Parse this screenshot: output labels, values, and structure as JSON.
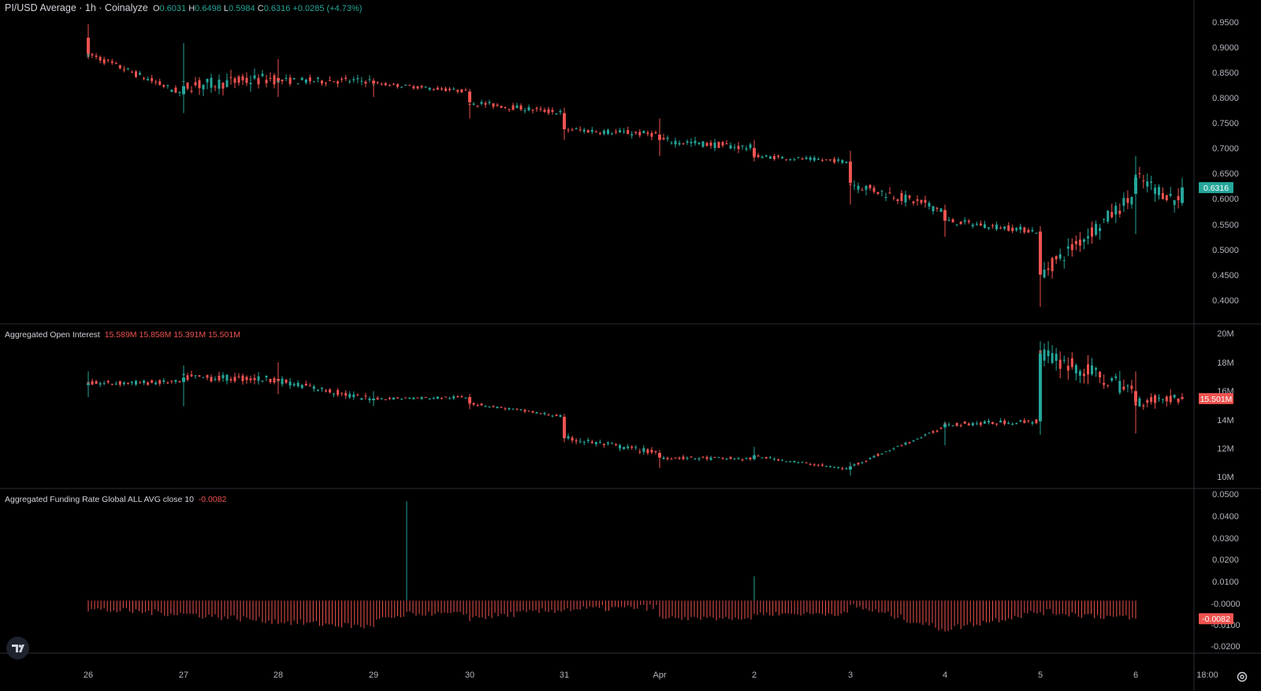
{
  "legend": {
    "main": {
      "title": "PI/USD Average · 1h · Coinalyze",
      "o_label": "O",
      "o": "0.6031",
      "h_label": "H",
      "h": "0.6498",
      "l_label": "L",
      "l": "0.5984",
      "c_label": "C",
      "c": "0.6316",
      "change": "+0.0285 (+4.73%)"
    },
    "oi": {
      "title": "Aggregated Open Interest",
      "o": "15.589M",
      "h": "15.858M",
      "l": "15.391M",
      "c": "15.501M"
    },
    "funding": {
      "title": "Aggregated Funding Rate Global ALL AVG close 10",
      "value": "-0.0082"
    }
  },
  "colors": {
    "up": "#26a69a",
    "down": "#ef5350",
    "background": "#000000",
    "text": "#d1d4dc",
    "grid": "#2a2e39"
  },
  "icons": {
    "logo": "tradingview-logo-icon",
    "settings": "gear-icon"
  },
  "chart_data": [
    {
      "type": "candlestick",
      "name": "PI/USD Average",
      "interval": "1h",
      "y_ticks": [
        "0.9500",
        "0.9000",
        "0.8500",
        "0.8000",
        "0.7500",
        "0.7000",
        "0.6500",
        "0.6000",
        "0.5500",
        "0.5000",
        "0.4500",
        "0.4000"
      ],
      "ylim": [
        0.38,
        0.98
      ],
      "last_value": "0.6316",
      "last_value_color": "#26a69a",
      "x": [
        "Mar 26",
        "Mar 27",
        "Mar 28",
        "Mar 29",
        "Mar 30",
        "Mar 31",
        "Apr 1",
        "Apr 2",
        "Apr 3",
        "Apr 4",
        "Apr 5",
        "Apr 6",
        "Apr 6 12:00"
      ],
      "open": [
        0.91,
        0.805,
        0.835,
        0.83,
        0.81,
        0.77,
        0.73,
        0.705,
        0.68,
        0.59,
        0.55,
        0.62,
        0.603
      ],
      "high": [
        0.935,
        0.9,
        0.87,
        0.835,
        0.815,
        0.78,
        0.76,
        0.72,
        0.7,
        0.6,
        0.56,
        0.69,
        0.65
      ],
      "low": [
        0.87,
        0.77,
        0.8,
        0.8,
        0.76,
        0.72,
        0.69,
        0.68,
        0.6,
        0.54,
        0.41,
        0.545,
        0.598
      ],
      "close": [
        0.88,
        0.82,
        0.83,
        0.825,
        0.79,
        0.74,
        0.72,
        0.69,
        0.64,
        0.57,
        0.47,
        0.65,
        0.632
      ]
    },
    {
      "type": "candlestick",
      "name": "Aggregated Open Interest",
      "y_ticks": [
        "20M",
        "18M",
        "16M",
        "14M",
        "12M",
        "10M"
      ],
      "ylim": [
        9.6,
        20.4
      ],
      "last_value": "15.501M",
      "last_value_color": "#ef5350",
      "x": [
        "Mar 26",
        "Mar 27",
        "Mar 28",
        "Mar 29",
        "Mar 30",
        "Mar 31",
        "Apr 1",
        "Apr 2",
        "Apr 3",
        "Apr 4",
        "Apr 5",
        "Apr 6",
        "Apr 6 12:00"
      ],
      "open": [
        16.4,
        16.6,
        16.8,
        15.4,
        15.6,
        14.3,
        11.9,
        11.5,
        10.8,
        13.6,
        14.0,
        16.0,
        15.589
      ],
      "high": [
        17.3,
        17.7,
        17.9,
        16.0,
        15.8,
        14.5,
        12.1,
        12.3,
        11.3,
        14.0,
        19.3,
        17.3,
        15.858
      ],
      "low": [
        15.6,
        15.0,
        15.8,
        15.0,
        14.8,
        12.6,
        10.9,
        11.4,
        10.4,
        12.4,
        13.1,
        13.2,
        15.391
      ],
      "close": [
        16.5,
        16.9,
        16.7,
        15.5,
        15.2,
        12.9,
        11.6,
        11.7,
        11.0,
        13.8,
        18.5,
        15.3,
        15.501
      ]
    },
    {
      "type": "bar",
      "name": "Aggregated Funding Rate Global ALL AVG close 10",
      "y_ticks": [
        "0.0500",
        "0.0400",
        "0.0300",
        "0.0200",
        "0.0100",
        "-0.0000",
        "-0.0100",
        "-0.0200"
      ],
      "ylim": [
        -0.0235,
        0.0505
      ],
      "last_value": "-0.0082",
      "last_value_color": "#ef5350",
      "x": [
        "Mar 26",
        "Mar 27",
        "Mar 28",
        "Mar 29",
        "Mar 29 08:00",
        "Mar 30",
        "Mar 31",
        "Apr 1",
        "Apr 2",
        "Apr 3",
        "Apr 4",
        "Apr 5",
        "Apr 6"
      ],
      "values": [
        -0.004,
        -0.006,
        -0.0095,
        -0.012,
        0.045,
        -0.008,
        -0.004,
        -0.003,
        0.011,
        -0.002,
        -0.013,
        -0.005,
        -0.0082
      ]
    }
  ],
  "x_axis": {
    "ticks": [
      "26",
      "27",
      "28",
      "29",
      "30",
      "31",
      "Apr",
      "2",
      "3",
      "4",
      "5",
      "6",
      "18:00"
    ]
  }
}
